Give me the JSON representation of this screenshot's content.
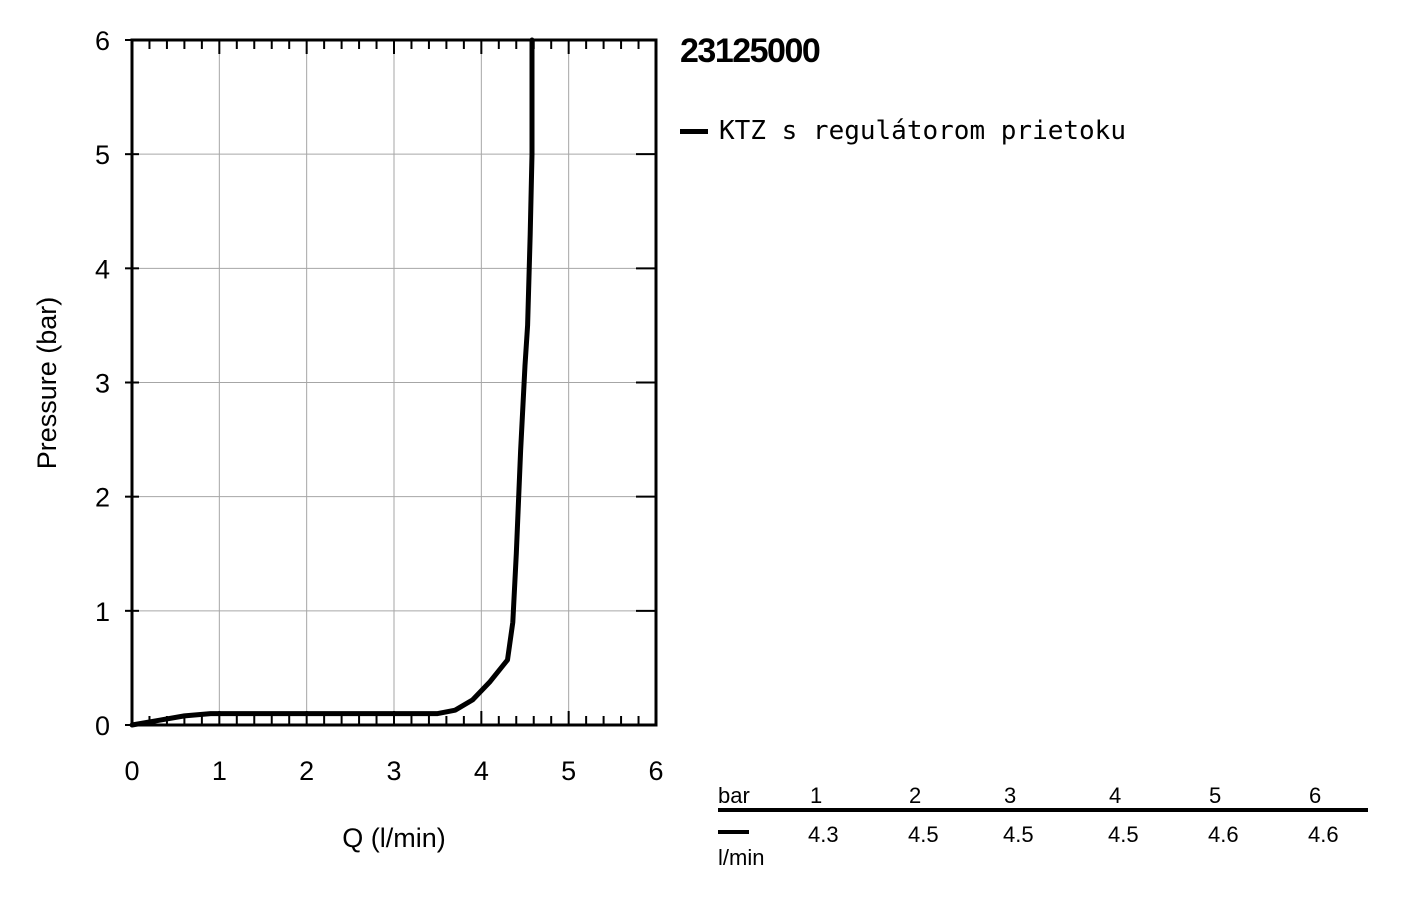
{
  "chart_data": {
    "type": "line",
    "title": "23125000",
    "xlabel": "Q (l/min)",
    "ylabel": "Pressure (bar)",
    "xlim": [
      0,
      6
    ],
    "ylim": [
      0,
      6
    ],
    "x_ticks": [
      "0",
      "1",
      "2",
      "3",
      "4",
      "5",
      "6"
    ],
    "y_ticks": [
      "0",
      "1",
      "2",
      "3",
      "4",
      "5",
      "6"
    ],
    "grid": true,
    "legend_position": "top-right",
    "series": [
      {
        "name": "KTZ s regulátorom prietoku",
        "color": "#000000",
        "points": [
          [
            0,
            0
          ],
          [
            0.3,
            0.04
          ],
          [
            0.6,
            0.08
          ],
          [
            0.9,
            0.1
          ],
          [
            1.5,
            0.1
          ],
          [
            2.0,
            0.1
          ],
          [
            2.5,
            0.1
          ],
          [
            3.0,
            0.1
          ],
          [
            3.5,
            0.1
          ],
          [
            3.7,
            0.13
          ],
          [
            3.9,
            0.22
          ],
          [
            4.1,
            0.38
          ],
          [
            4.3,
            0.57
          ],
          [
            4.36,
            0.9
          ],
          [
            4.4,
            1.5
          ],
          [
            4.45,
            2.4
          ],
          [
            4.5,
            3.15
          ],
          [
            4.53,
            3.5
          ],
          [
            4.56,
            4.3
          ],
          [
            4.58,
            5.0
          ],
          [
            4.58,
            6.0
          ]
        ]
      }
    ]
  },
  "table": {
    "header_label": "bar",
    "pressures": [
      "1",
      "2",
      "3",
      "4",
      "5",
      "6"
    ],
    "unit_label": "l/min",
    "flows": [
      "4.3",
      "4.5",
      "4.5",
      "4.5",
      "4.6",
      "4.6"
    ]
  }
}
